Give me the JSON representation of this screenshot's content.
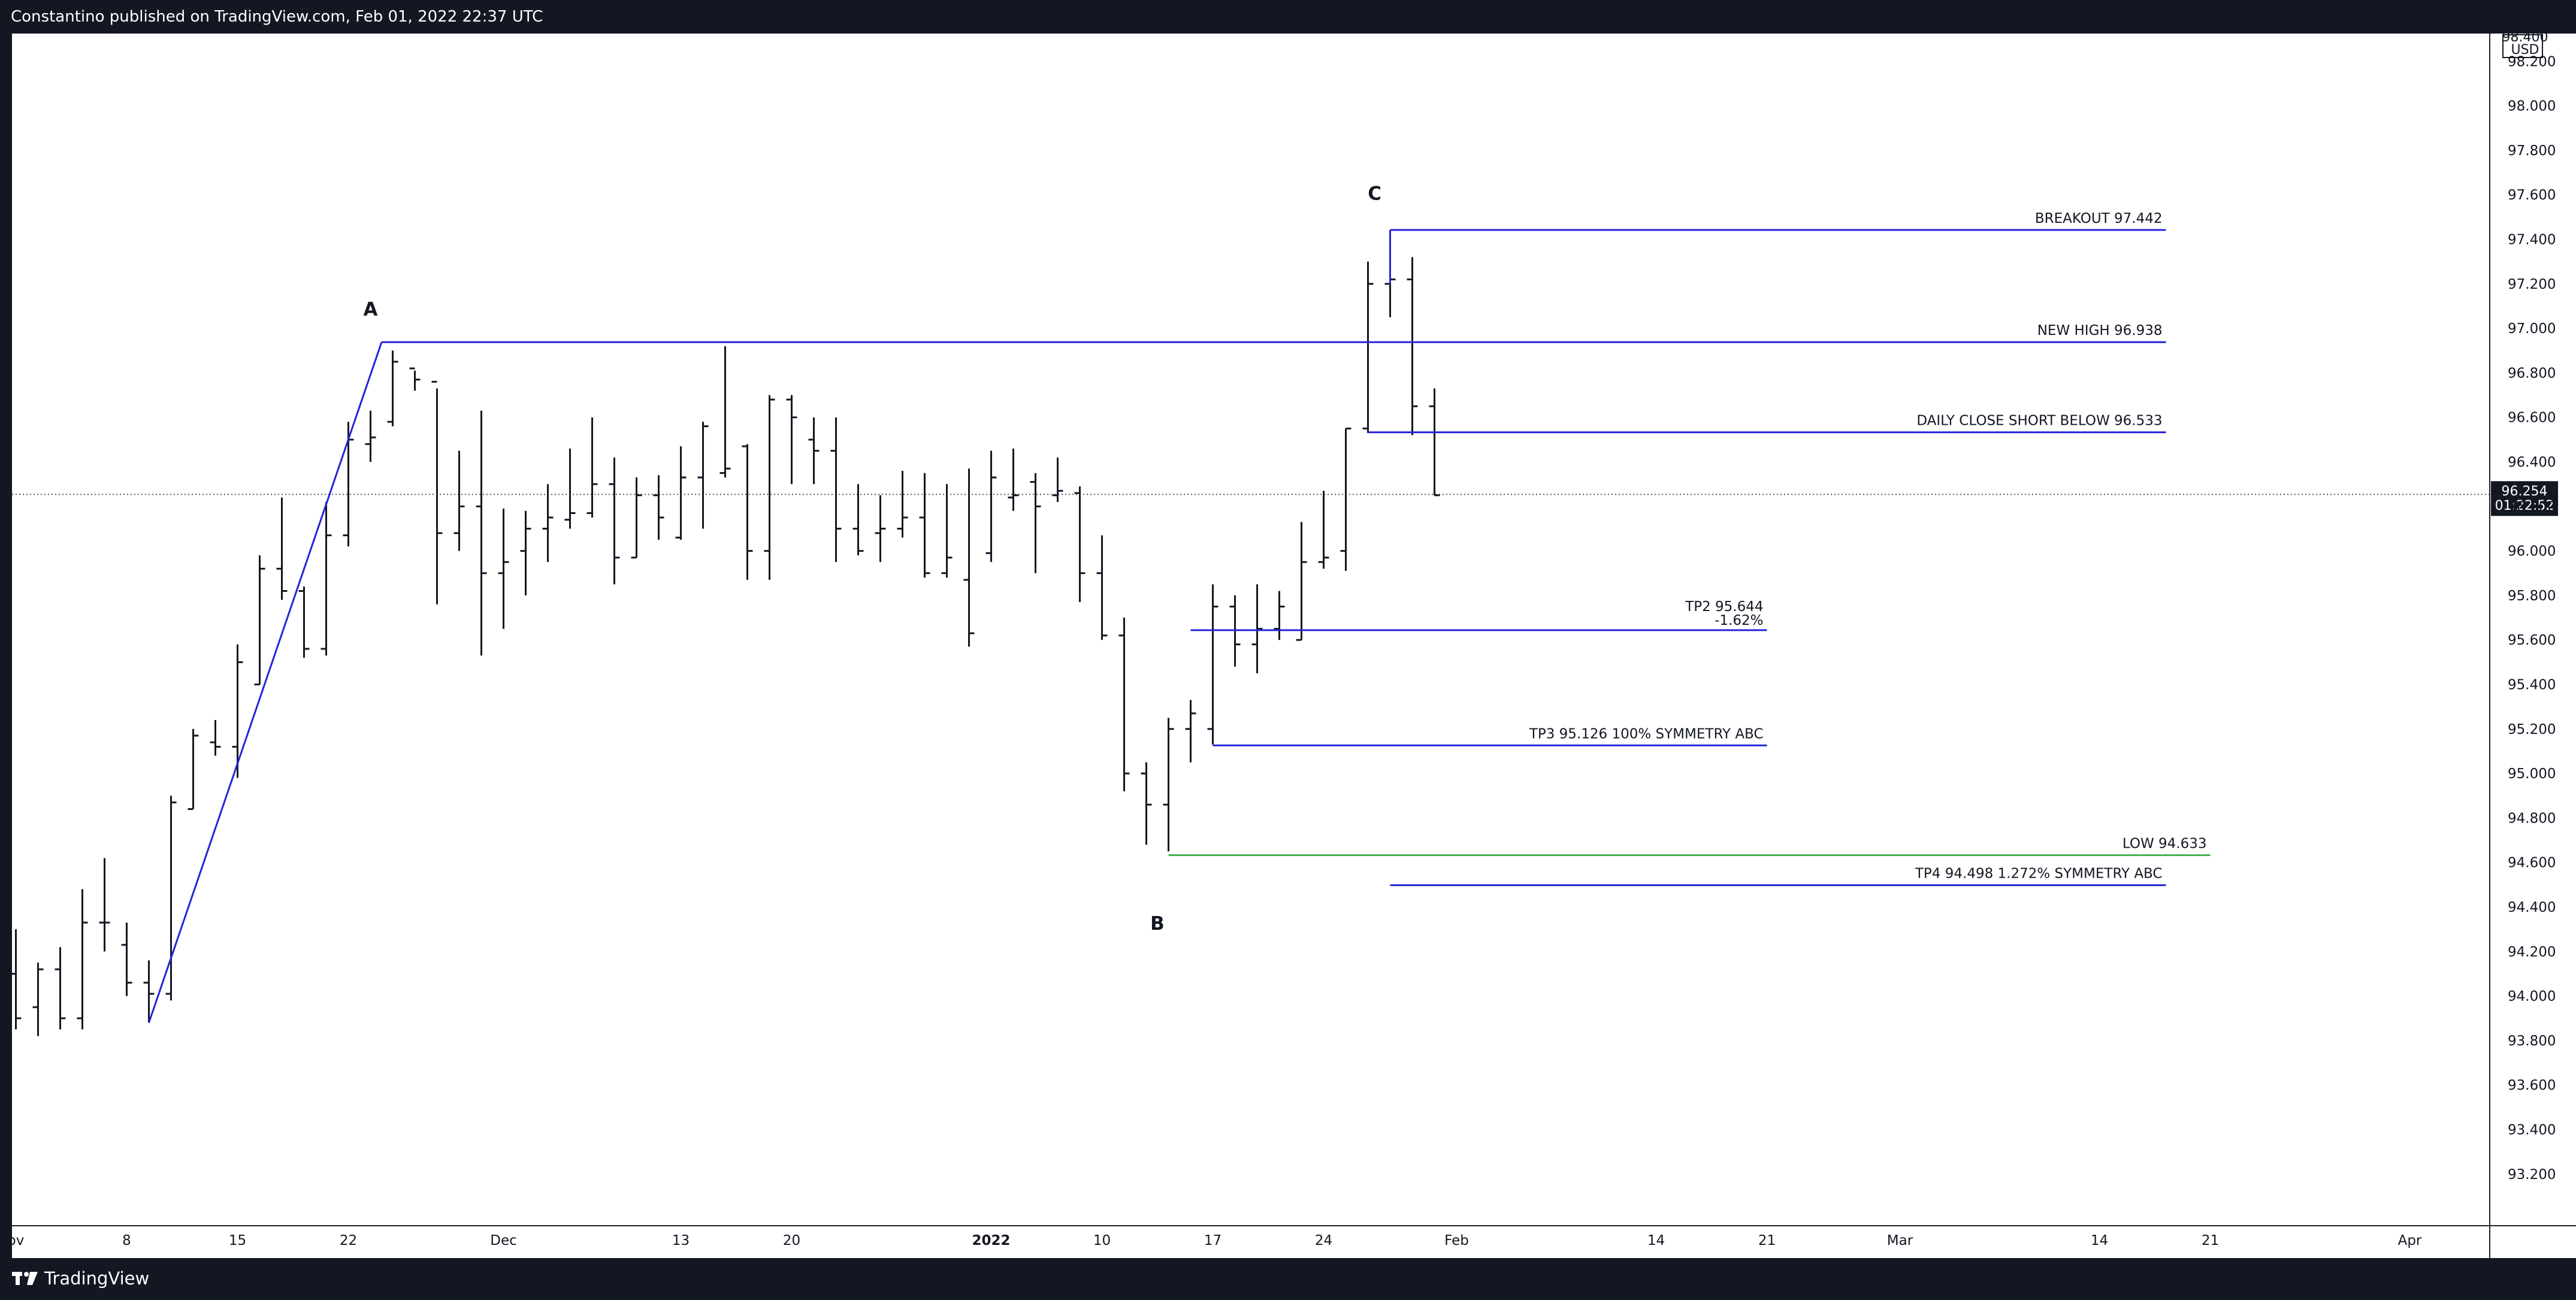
{
  "header": {
    "published": "Constantino published on TradingView.com, Feb 01, 2022 22:37 UTC"
  },
  "footer": {
    "brand": "TradingView"
  },
  "colors": {
    "bars": "#131722",
    "drawing_lines": "#2424d6",
    "low_line": "#4caf50",
    "price_tag": "#131722"
  },
  "price_scale": {
    "currency": "USD",
    "top_label": "98.400",
    "last_price": "96.254",
    "countdown": "01:22:52"
  },
  "chart_data": {
    "type": "ohlc",
    "x_unit": "bar index (daily bars, 0 = first visible bar in early November 2021)",
    "ylim": [
      93.0,
      98.45
    ],
    "y_ticks": [
      "98.200",
      "98.000",
      "97.800",
      "97.600",
      "97.400",
      "97.200",
      "97.000",
      "96.800",
      "96.600",
      "96.400",
      "96.200",
      "96.000",
      "95.800",
      "95.600",
      "95.400",
      "95.200",
      "95.000",
      "94.800",
      "94.600",
      "94.400",
      "94.200",
      "94.000",
      "93.800",
      "93.600",
      "93.400",
      "93.200"
    ],
    "x_ticks": [
      {
        "label": "ov",
        "i": 0
      },
      {
        "label": "8",
        "i": 5
      },
      {
        "label": "15",
        "i": 10
      },
      {
        "label": "22",
        "i": 15
      },
      {
        "label": "Dec",
        "i": 22
      },
      {
        "label": "13",
        "i": 30
      },
      {
        "label": "20",
        "i": 35
      },
      {
        "label": "2022",
        "i": 44
      },
      {
        "label": "10",
        "i": 49
      },
      {
        "label": "17",
        "i": 54
      },
      {
        "label": "24",
        "i": 59
      },
      {
        "label": "Feb",
        "i": 65
      },
      {
        "label": "14",
        "i": 74
      },
      {
        "label": "21",
        "i": 79
      },
      {
        "label": "Mar",
        "i": 85
      },
      {
        "label": "14",
        "i": 94
      },
      {
        "label": "21",
        "i": 99
      },
      {
        "label": "Apr",
        "i": 108
      }
    ],
    "ohlc": [
      {
        "i": 0,
        "o": 94.1,
        "h": 94.3,
        "l": 93.85,
        "c": 93.9
      },
      {
        "i": 1,
        "o": 93.95,
        "h": 94.15,
        "l": 93.82,
        "c": 94.12
      },
      {
        "i": 2,
        "o": 94.12,
        "h": 94.22,
        "l": 93.85,
        "c": 93.9
      },
      {
        "i": 3,
        "o": 93.9,
        "h": 94.48,
        "l": 93.85,
        "c": 94.33
      },
      {
        "i": 4,
        "o": 94.33,
        "h": 94.62,
        "l": 94.2,
        "c": 94.33
      },
      {
        "i": 5,
        "o": 94.23,
        "h": 94.33,
        "l": 94.0,
        "c": 94.06
      },
      {
        "i": 6,
        "o": 94.06,
        "h": 94.16,
        "l": 93.88,
        "c": 94.01
      },
      {
        "i": 7,
        "o": 94.01,
        "h": 94.9,
        "l": 93.98,
        "c": 94.87
      },
      {
        "i": 8,
        "o": 94.84,
        "h": 95.2,
        "l": 94.84,
        "c": 95.17
      },
      {
        "i": 9,
        "o": 95.14,
        "h": 95.24,
        "l": 95.08,
        "c": 95.12
      },
      {
        "i": 10,
        "o": 95.12,
        "h": 95.58,
        "l": 94.98,
        "c": 95.5
      },
      {
        "i": 11,
        "o": 95.4,
        "h": 95.98,
        "l": 95.4,
        "c": 95.92
      },
      {
        "i": 12,
        "o": 95.92,
        "h": 96.24,
        "l": 95.78,
        "c": 95.82
      },
      {
        "i": 13,
        "o": 95.82,
        "h": 95.84,
        "l": 95.52,
        "c": 95.56
      },
      {
        "i": 14,
        "o": 95.56,
        "h": 96.22,
        "l": 95.53,
        "c": 96.07
      },
      {
        "i": 15,
        "o": 96.07,
        "h": 96.58,
        "l": 96.02,
        "c": 96.5
      },
      {
        "i": 16,
        "o": 96.48,
        "h": 96.63,
        "l": 96.4,
        "c": 96.51
      },
      {
        "i": 17,
        "o": 96.58,
        "h": 96.9,
        "l": 96.56,
        "c": 96.85
      },
      {
        "i": 18,
        "o": 96.82,
        "h": 96.81,
        "l": 96.72,
        "c": 96.77
      },
      {
        "i": 19,
        "o": 96.76,
        "h": 96.73,
        "l": 95.76,
        "c": 96.08
      },
      {
        "i": 20,
        "o": 96.08,
        "h": 96.45,
        "l": 96.0,
        "c": 96.2
      },
      {
        "i": 21,
        "o": 96.2,
        "h": 96.63,
        "l": 95.53,
        "c": 95.9
      },
      {
        "i": 22,
        "o": 95.9,
        "h": 96.19,
        "l": 95.65,
        "c": 95.95
      },
      {
        "i": 23,
        "o": 96.0,
        "h": 96.18,
        "l": 95.8,
        "c": 96.1
      },
      {
        "i": 24,
        "o": 96.1,
        "h": 96.3,
        "l": 95.95,
        "c": 96.15
      },
      {
        "i": 25,
        "o": 96.14,
        "h": 96.46,
        "l": 96.1,
        "c": 96.17
      },
      {
        "i": 26,
        "o": 96.17,
        "h": 96.6,
        "l": 96.15,
        "c": 96.3
      },
      {
        "i": 27,
        "o": 96.3,
        "h": 96.42,
        "l": 95.85,
        "c": 95.97
      },
      {
        "i": 28,
        "o": 95.97,
        "h": 96.33,
        "l": 95.97,
        "c": 96.25
      },
      {
        "i": 29,
        "o": 96.25,
        "h": 96.34,
        "l": 96.05,
        "c": 96.15
      },
      {
        "i": 30,
        "o": 96.06,
        "h": 96.47,
        "l": 96.05,
        "c": 96.33
      },
      {
        "i": 31,
        "o": 96.33,
        "h": 96.58,
        "l": 96.1,
        "c": 96.56
      },
      {
        "i": 32,
        "o": 96.35,
        "h": 96.92,
        "l": 96.33,
        "c": 96.37
      },
      {
        "i": 33,
        "o": 96.47,
        "h": 96.48,
        "l": 95.87,
        "c": 96.0
      },
      {
        "i": 34,
        "o": 96.0,
        "h": 96.7,
        "l": 95.87,
        "c": 96.68
      },
      {
        "i": 35,
        "o": 96.68,
        "h": 96.7,
        "l": 96.3,
        "c": 96.6
      },
      {
        "i": 36,
        "o": 96.5,
        "h": 96.6,
        "l": 96.3,
        "c": 96.45
      },
      {
        "i": 37,
        "o": 96.45,
        "h": 96.6,
        "l": 95.95,
        "c": 96.1
      },
      {
        "i": 38,
        "o": 96.1,
        "h": 96.3,
        "l": 95.98,
        "c": 96.0
      },
      {
        "i": 39,
        "o": 96.08,
        "h": 96.25,
        "l": 95.95,
        "c": 96.1
      },
      {
        "i": 40,
        "o": 96.1,
        "h": 96.36,
        "l": 96.06,
        "c": 96.15
      },
      {
        "i": 41,
        "o": 96.15,
        "h": 96.35,
        "l": 95.88,
        "c": 95.9
      },
      {
        "i": 42,
        "o": 95.9,
        "h": 96.3,
        "l": 95.88,
        "c": 95.97
      },
      {
        "i": 43,
        "o": 95.87,
        "h": 96.37,
        "l": 95.57,
        "c": 95.63
      },
      {
        "i": 44,
        "o": 95.99,
        "h": 96.45,
        "l": 95.95,
        "c": 96.33
      },
      {
        "i": 45,
        "o": 96.24,
        "h": 96.46,
        "l": 96.18,
        "c": 96.25
      },
      {
        "i": 46,
        "o": 96.31,
        "h": 96.35,
        "l": 95.9,
        "c": 96.2
      },
      {
        "i": 47,
        "o": 96.25,
        "h": 96.42,
        "l": 96.22,
        "c": 96.27
      },
      {
        "i": 48,
        "o": 96.26,
        "h": 96.29,
        "l": 95.77,
        "c": 95.9
      },
      {
        "i": 49,
        "o": 95.9,
        "h": 96.07,
        "l": 95.6,
        "c": 95.62
      },
      {
        "i": 50,
        "o": 95.62,
        "h": 95.7,
        "l": 94.92,
        "c": 95.0
      },
      {
        "i": 51,
        "o": 95.0,
        "h": 95.05,
        "l": 94.68,
        "c": 94.86
      },
      {
        "i": 52,
        "o": 94.86,
        "h": 95.25,
        "l": 94.65,
        "c": 95.2
      },
      {
        "i": 53,
        "o": 95.2,
        "h": 95.33,
        "l": 95.05,
        "c": 95.27
      },
      {
        "i": 54,
        "o": 95.2,
        "h": 95.85,
        "l": 95.13,
        "c": 95.75
      },
      {
        "i": 55,
        "o": 95.75,
        "h": 95.8,
        "l": 95.48,
        "c": 95.58
      },
      {
        "i": 56,
        "o": 95.58,
        "h": 95.85,
        "l": 95.45,
        "c": 95.65
      },
      {
        "i": 57,
        "o": 95.65,
        "h": 95.82,
        "l": 95.6,
        "c": 95.75
      },
      {
        "i": 58,
        "o": 95.6,
        "h": 96.13,
        "l": 95.6,
        "c": 95.95
      },
      {
        "i": 59,
        "o": 95.95,
        "h": 96.27,
        "l": 95.92,
        "c": 95.97
      },
      {
        "i": 60,
        "o": 96.0,
        "h": 96.55,
        "l": 95.91,
        "c": 96.55
      },
      {
        "i": 61,
        "o": 96.55,
        "h": 97.3,
        "l": 96.53,
        "c": 97.2
      },
      {
        "i": 62,
        "o": 97.2,
        "h": 97.28,
        "l": 97.05,
        "c": 97.22
      },
      {
        "i": 63,
        "o": 97.22,
        "h": 97.32,
        "l": 96.52,
        "c": 96.65
      },
      {
        "i": 64,
        "o": 96.65,
        "h": 96.73,
        "l": 96.25,
        "c": 96.25
      }
    ],
    "horizontal_lines": [
      {
        "label": "BREAKOUT 97.442",
        "price": 97.442,
        "from": 62,
        "to": 97,
        "color": "blue"
      },
      {
        "label": "NEW HIGH 96.938",
        "price": 96.938,
        "from": 16.5,
        "to": 97,
        "color": "blue"
      },
      {
        "label": "DAILY CLOSE SHORT BELOW  96.533",
        "price": 96.533,
        "from": 61,
        "to": 97,
        "color": "blue"
      },
      {
        "label": "TP2 95.644",
        "sublabel": "-1.62%",
        "price": 95.644,
        "from": 53,
        "to": 79,
        "color": "blue"
      },
      {
        "label": "TP3  95.126 100% SYMMETRY ABC",
        "price": 95.126,
        "from": 54,
        "to": 79,
        "color": "blue"
      },
      {
        "label": "LOW  94.633",
        "price": 94.633,
        "from": 52,
        "to": 99,
        "color": "green"
      },
      {
        "label": "TP4  94.498 1.272% SYMMETRY ABC",
        "price": 94.498,
        "from": 62,
        "to": 97,
        "color": "blue"
      }
    ],
    "trend_line": [
      {
        "i": 6,
        "p": 93.88
      },
      {
        "i": 16.5,
        "p": 96.938
      }
    ],
    "points": [
      {
        "label": "A",
        "i": 16,
        "p": 97.09
      },
      {
        "label": "B",
        "i": 51.5,
        "p": 94.33
      },
      {
        "label": "C",
        "i": 61.3,
        "p": 97.61
      }
    ],
    "last_price_line": 96.254
  }
}
